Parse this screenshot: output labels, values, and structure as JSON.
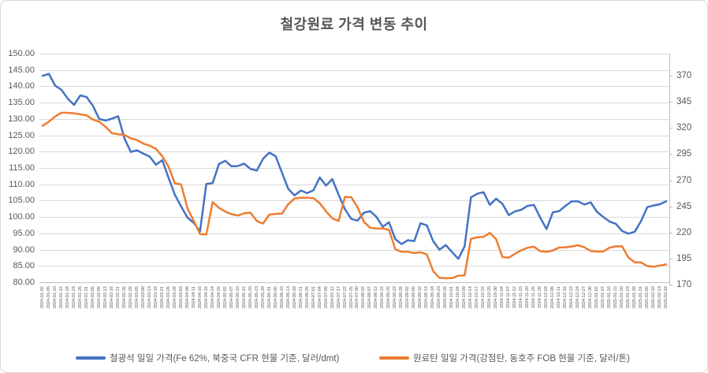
{
  "title": "철강원료 가격 변동 추이",
  "colors": {
    "iron_ore": "#4472C4",
    "coking_coal": "#ED7D31",
    "gridline": "#D9D9D9",
    "axis_line": "#BFBFBF",
    "tick_text": "#595959",
    "title_text": "#555555"
  },
  "legend": {
    "items": [
      {
        "label": "철광석 일일 가격(Fe 62%, 북중국 CFR 현물 기준, 달러/dmt)",
        "color": "#4472C4"
      },
      {
        "label": "원료탄 일일 가격(강점탄, 동호주 FOB 현물 기준, 달러/톤)",
        "color": "#ED7D31"
      }
    ]
  },
  "chart_data": {
    "type": "line",
    "title": "철강원료 가격 변동 추이",
    "grid": true,
    "legend_position": "bottom",
    "left_axis": {
      "min": 80,
      "max": 150,
      "step": 5,
      "decimals": 2
    },
    "right_axis": {
      "min": 170,
      "max": 370,
      "step": 25,
      "decimals": 0
    },
    "left_ticks": [
      "150.00",
      "145.00",
      "140.00",
      "135.00",
      "130.00",
      "125.00",
      "120.00",
      "115.00",
      "110.00",
      "105.00",
      "100.00",
      "95.00",
      "90.00",
      "85.00",
      "80.00"
    ],
    "right_ticks": [
      "370",
      "345",
      "320",
      "295",
      "270",
      "245",
      "220",
      "195",
      "170"
    ],
    "x": [
      "2024-01-02",
      "2024-01-05",
      "2024-01-10",
      "2024-01-15",
      "2024-01-18",
      "2024-01-23",
      "2024-01-26",
      "2024-01-31",
      "2024-02-05",
      "2024-02-08",
      "2024-02-13",
      "2024-02-16",
      "2024-02-21",
      "2024-02-26",
      "2024-02-29",
      "2024-03-05",
      "2024-03-08",
      "2024-03-13",
      "2024-03-18",
      "2024-03-21",
      "2024-03-26",
      "2024-03-29",
      "2024-04-03",
      "2024-04-08",
      "2024-04-11",
      "2024-04-16",
      "2024-04-19",
      "2024-04-24",
      "2024-04-29",
      "2024-05-02",
      "2024-05-07",
      "2024-05-10",
      "2024-05-15",
      "2024-05-20",
      "2024-05-23",
      "2024-05-28",
      "2024-05-31",
      "2024-06-05",
      "2024-06-10",
      "2024-06-13",
      "2024-06-18",
      "2024-06-21",
      "2024-06-26",
      "2024-07-01",
      "2024-07-04",
      "2024-07-09",
      "2024-07-12",
      "2024-07-17",
      "2024-07-22",
      "2024-07-25",
      "2024-07-30",
      "2024-08-02",
      "2024-08-07",
      "2024-08-12",
      "2024-08-15",
      "2024-08-20",
      "2024-08-23",
      "2024-08-28",
      "2024-09-02",
      "2024-09-05",
      "2024-09-10",
      "2024-09-13",
      "2024-09-18",
      "2024-09-23",
      "2024-09-26",
      "2024-10-01",
      "2024-10-04",
      "2024-10-09",
      "2024-10-14",
      "2024-10-17",
      "2024-10-22",
      "2024-10-25",
      "2024-10-30",
      "2024-11-04",
      "2024-11-07",
      "2024-11-12",
      "2024-11-15",
      "2024-11-20",
      "2024-11-25",
      "2024-11-28",
      "2024-12-03",
      "2024-12-06",
      "2024-12-11",
      "2024-12-16",
      "2024-12-19",
      "2024-12-24",
      "2024-12-27",
      "2024-12-30",
      "2025-01-02",
      "2025-01-07",
      "2025-01-10",
      "2025-01-15",
      "2025-01-20",
      "2025-01-23",
      "2025-01-28",
      "2025-01-31",
      "2025-02-05",
      "2025-02-10",
      "2025-02-13",
      "2025-02-18"
    ],
    "series": [
      {
        "name": "철광석 일일 가격(Fe 62%, 북중국 CFR 현물 기준, 달러/dmt)",
        "axis": "left",
        "color": "#4472C4",
        "values": [
          143.2,
          143.8,
          140.2,
          138.9,
          136.2,
          134.3,
          137.2,
          136.7,
          134.0,
          130.0,
          129.5,
          130.1,
          130.8,
          124.0,
          119.9,
          120.4,
          119.4,
          118.5,
          116.0,
          117.4,
          112.0,
          106.8,
          103.2,
          99.8,
          98.2,
          95.6,
          110.1,
          110.4,
          116.2,
          117.2,
          115.5,
          115.6,
          116.3,
          114.7,
          114.2,
          117.8,
          119.7,
          118.6,
          113.6,
          108.6,
          106.6,
          108.1,
          107.3,
          108.2,
          112.1,
          109.6,
          111.6,
          106.8,
          102.4,
          99.4,
          98.9,
          101.3,
          101.8,
          100.0,
          97.0,
          98.4,
          93.2,
          91.7,
          92.9,
          92.6,
          98.1,
          97.4,
          92.6,
          90.0,
          91.4,
          89.3,
          87.2,
          91.0,
          106.0,
          107.1,
          107.6,
          103.7,
          105.6,
          104.0,
          100.6,
          101.7,
          102.2,
          103.4,
          103.7,
          99.8,
          96.3,
          101.4,
          101.8,
          103.4,
          104.8,
          104.8,
          103.8,
          104.5,
          101.6,
          100.0,
          98.6,
          97.9,
          95.7,
          94.9,
          95.5,
          98.7,
          103.0,
          103.5,
          103.9,
          104.8
        ]
      },
      {
        "name": "원료탄 일일 가격(강점탄, 동호주 FOB 현물 기준, 달러/톤)",
        "axis": "right",
        "color": "#ED7D31",
        "values": [
          322,
          326,
          331,
          334.5,
          334.5,
          334,
          333,
          332,
          328,
          326,
          321,
          315,
          314,
          313.5,
          310,
          308.5,
          305,
          303,
          300,
          293,
          283,
          267,
          266,
          243,
          231,
          218.5,
          218,
          249,
          243.5,
          240,
          237.5,
          236.2,
          238.3,
          239,
          231,
          228.5,
          237,
          237.7,
          238,
          247,
          252.6,
          253.2,
          253.2,
          252.8,
          248,
          240.2,
          233.5,
          231,
          254,
          253.8,
          244,
          230.2,
          224.5,
          223.8,
          223.8,
          222.5,
          203.9,
          201.5,
          201.4,
          200.3,
          201,
          199,
          183,
          176.5,
          176.2,
          176.2,
          178.6,
          179,
          213.9,
          215.3,
          215.8,
          219.6,
          213.5,
          196.4,
          195.8,
          199.6,
          202.9,
          205.4,
          206.4,
          202.1,
          201.4,
          202.7,
          205.6,
          205.8,
          206.6,
          207.7,
          205.8,
          202.3,
          201.7,
          201.7,
          205.4,
          206.7,
          206.7,
          196,
          191.4,
          191.2,
          187.8,
          187.2,
          188.3,
          189.5
        ]
      }
    ]
  }
}
